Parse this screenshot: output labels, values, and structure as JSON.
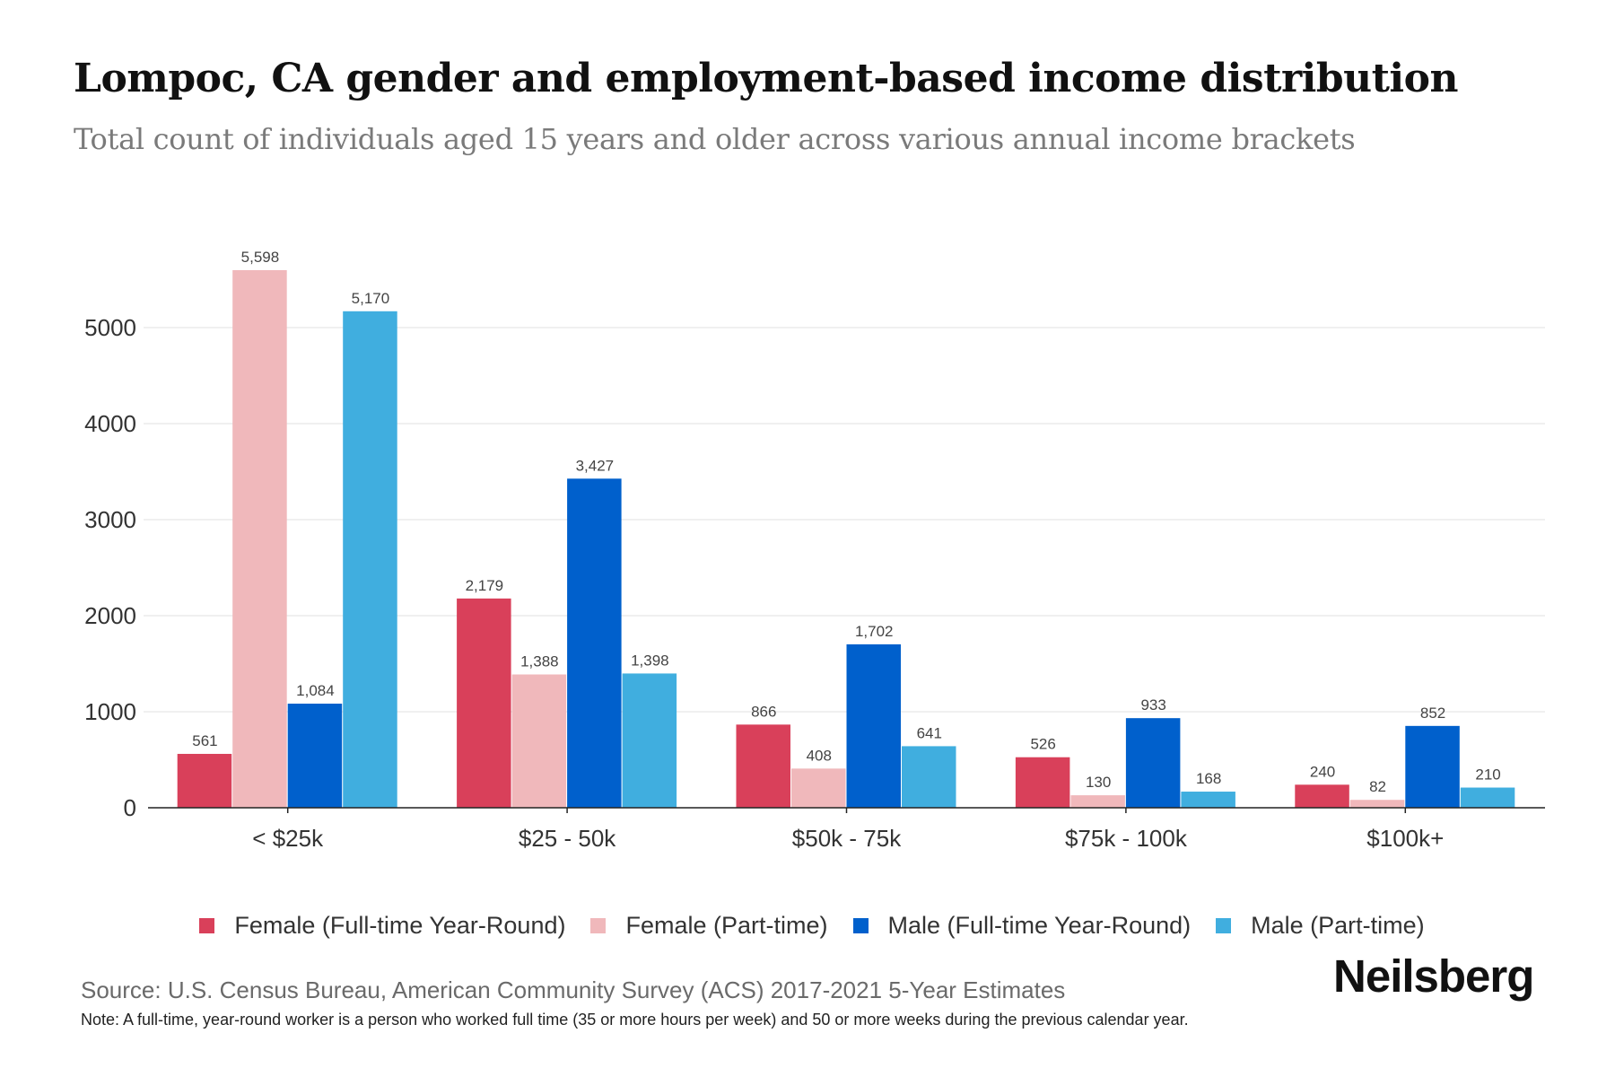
{
  "header": {
    "title": "Lompoc, CA gender and employment-based income distribution",
    "subtitle": "Total count of individuals aged 15 years and older across various annual income brackets"
  },
  "footer": {
    "source": "Source: U.S. Census Bureau, American Community Survey (ACS) 2017-2021 5-Year Estimates",
    "note": "Note: A full-time, year-round worker is a person who worked full time (35 or more hours per week) and 50 or more weeks during the previous calendar year.",
    "logo": "Neilsberg"
  },
  "chart_data": {
    "type": "bar",
    "title": "Lompoc, CA gender and employment-based income distribution",
    "subtitle": "Total count of individuals aged 15 years and older across various annual income brackets",
    "xlabel": "",
    "ylabel": "",
    "categories": [
      "< $25k",
      "$25 - 50k",
      "$50k - 75k",
      "$75k - 100k",
      "$100k+"
    ],
    "series": [
      {
        "name": "Female (Full-time Year-Round)",
        "color": "#D9405A",
        "values": [
          561,
          2179,
          866,
          526,
          240
        ],
        "labels": [
          "561",
          "2,179",
          "866",
          "526",
          "240"
        ]
      },
      {
        "name": "Female (Part-time)",
        "color": "#F0B8BB",
        "values": [
          5598,
          1388,
          408,
          130,
          82
        ],
        "labels": [
          "5,598",
          "1,388",
          "408",
          "130",
          "82"
        ]
      },
      {
        "name": "Male (Full-time Year-Round)",
        "color": "#0060CC",
        "values": [
          1084,
          3427,
          1702,
          933,
          852
        ],
        "labels": [
          "1,084",
          "3,427",
          "1,702",
          "933",
          "852"
        ]
      },
      {
        "name": "Male (Part-time)",
        "color": "#40AEDF",
        "values": [
          5170,
          1398,
          641,
          168,
          210
        ],
        "labels": [
          "5,170",
          "1,398",
          "641",
          "168",
          "210"
        ]
      }
    ],
    "yticks": [
      0,
      1000,
      2000,
      3000,
      4000,
      5000
    ],
    "ytick_labels": [
      "0",
      "1000",
      "2000",
      "3000",
      "4000",
      "5000"
    ],
    "ylim": [
      0,
      5000
    ],
    "grid": true,
    "legend_position": "bottom-center"
  }
}
